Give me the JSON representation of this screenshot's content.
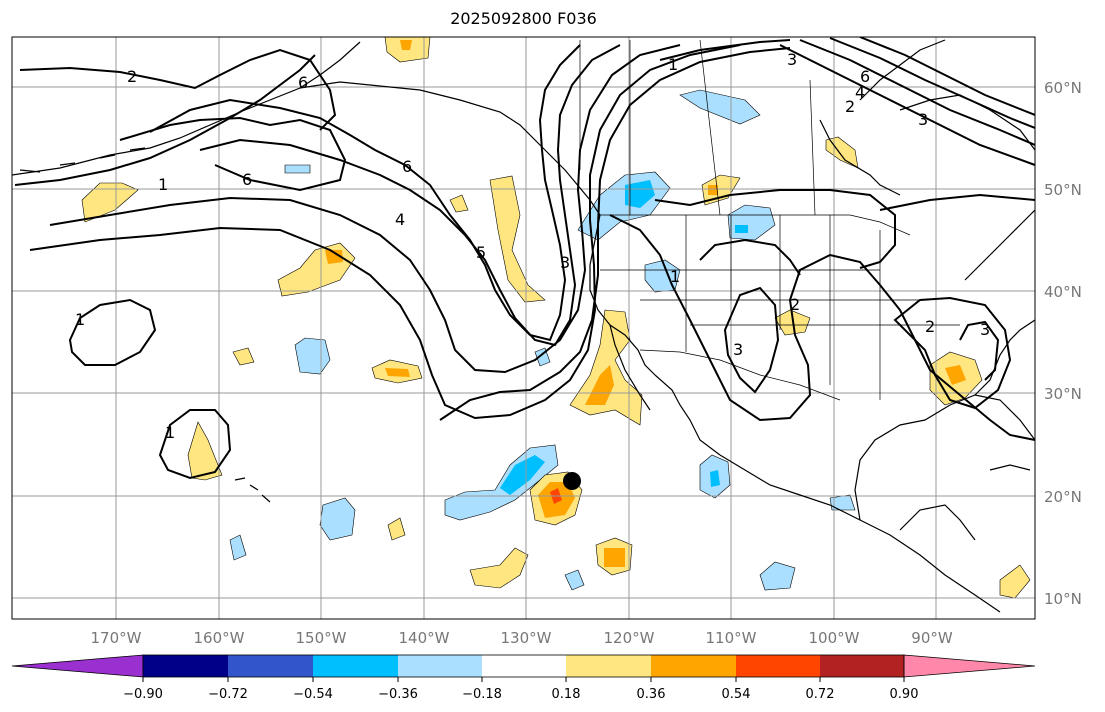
{
  "title": "2025092800 F036",
  "longitude_labels": [
    "170°W",
    "160°W",
    "150°W",
    "140°W",
    "130°W",
    "120°W",
    "110°W",
    "100°W",
    "90°W"
  ],
  "latitude_labels": [
    "60°N",
    "50°N",
    "40°N",
    "30°N",
    "20°N",
    "10°N"
  ],
  "colorbar": {
    "ticks": [
      "−0.90",
      "−0.72",
      "−0.54",
      "−0.36",
      "−0.18",
      "0.18",
      "0.36",
      "0.54",
      "0.72",
      "0.90"
    ],
    "colors": [
      "#9b30d0",
      "#000088",
      "#3355cc",
      "#00bfff",
      "#aadfff",
      "#ffffff",
      "#ffe680",
      "#ffa500",
      "#ff4500",
      "#b22222",
      "#ff88aa"
    ]
  },
  "contour_labels": [
    "2",
    "6",
    "1",
    "6",
    "6",
    "4",
    "5",
    "3",
    "1",
    "3",
    "6",
    "4",
    "2",
    "2",
    "3",
    "1",
    "3",
    "2",
    "3",
    "1",
    "1"
  ],
  "colors": {
    "fill_light_blue": "#aadfff",
    "fill_blue": "#00bfff",
    "fill_yellow": "#ffe680",
    "fill_orange": "#ffa500",
    "fill_red": "#ff4500",
    "grid": "#999999",
    "contour": "#000000"
  },
  "marker": "black-dot"
}
